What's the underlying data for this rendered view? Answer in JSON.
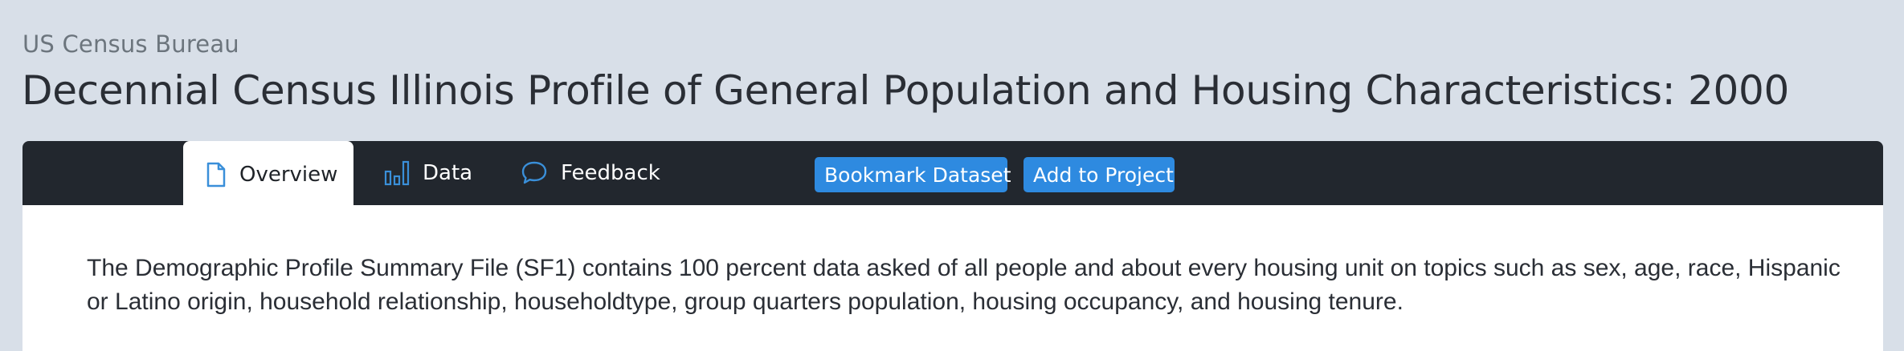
{
  "header": {
    "publisher": "US Census Bureau",
    "title": "Decennial Census Illinois Profile of General Population and Housing Characteristics: 2000"
  },
  "nav": {
    "tabs": [
      {
        "label": "Overview",
        "icon": "document-icon",
        "active": true
      },
      {
        "label": "Data",
        "icon": "bar-chart-icon",
        "active": false
      },
      {
        "label": "Feedback",
        "icon": "speech-bubble-icon",
        "active": false
      }
    ],
    "bookmark_label": "Bookmark Dataset",
    "add_project_label": "Add to Project"
  },
  "overview": {
    "description": "The Demographic Profile Summary File (SF1) contains 100 percent data asked of all people and about every housing unit on topics such as sex, age, race, Hispanic or Latino origin, household relationship, householdtype, group quarters population, housing occupancy, and housing tenure."
  },
  "colors": {
    "page_background": "#d8dfe8",
    "nav_background": "#22272e",
    "accent": "#2e8ae0",
    "icon_accent": "#3a8fd9"
  }
}
